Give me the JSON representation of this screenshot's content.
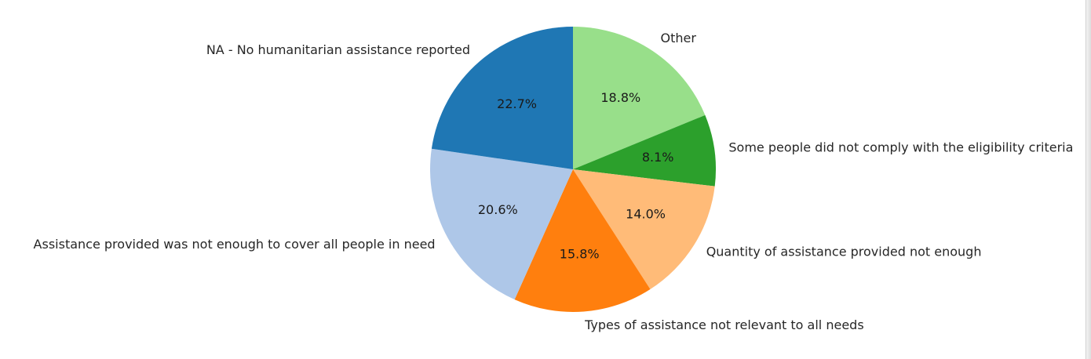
{
  "chart_data": {
    "type": "pie",
    "title": "",
    "start_angle_deg": 90,
    "direction": "clockwise",
    "slices": [
      {
        "label": "Other",
        "value": 18.8,
        "pct_text": "18.8%",
        "color": "#98df8a"
      },
      {
        "label": "Some people did not comply with the eligibility criteria",
        "value": 8.1,
        "pct_text": "8.1%",
        "color": "#2ca02c"
      },
      {
        "label": "Quantity of assistance provided not enough",
        "value": 14.0,
        "pct_text": "14.0%",
        "color": "#ffbb78"
      },
      {
        "label": "Types of assistance not relevant to all needs",
        "value": 15.8,
        "pct_text": "15.8%",
        "color": "#ff7f0e"
      },
      {
        "label": "Assistance provided was not enough to cover all people in need",
        "value": 20.6,
        "pct_text": "20.6%",
        "color": "#aec7e8"
      },
      {
        "label": "NA - No humanitarian assistance reported",
        "value": 22.7,
        "pct_text": "22.7%",
        "color": "#1f77b4"
      }
    ]
  }
}
